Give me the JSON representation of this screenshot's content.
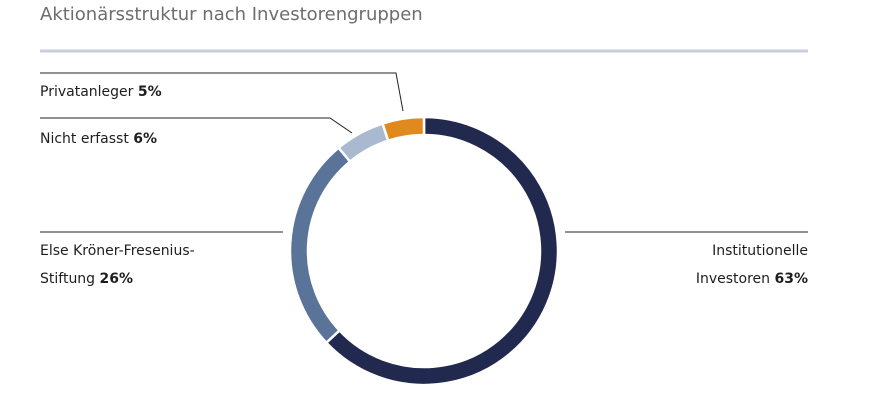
{
  "chart_data": {
    "type": "donut",
    "title": "Aktionärsstruktur nach Investorengruppen",
    "categories": [
      "Institutionelle Investoren",
      "Else Kröner-Fresenius-Stiftung",
      "Nicht erfasst",
      "Privatanleger"
    ],
    "values": [
      63,
      26,
      6,
      5
    ],
    "value_labels": [
      "63%",
      "26%",
      "6%",
      "5%"
    ],
    "colors": [
      "#22294f",
      "#5a7399",
      "#a9b9cf",
      "#e08a1e"
    ]
  }
}
